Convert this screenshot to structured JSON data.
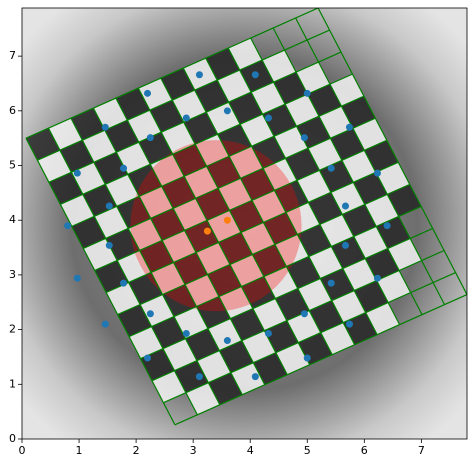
{
  "chart_data": {
    "type": "scatter",
    "xlim": [
      0,
      7.8
    ],
    "ylim": [
      0,
      7.88
    ],
    "xticks": [
      0,
      1,
      2,
      3,
      4,
      5,
      6,
      7
    ],
    "yticks": [
      0,
      1,
      2,
      3,
      4,
      5,
      6,
      7
    ],
    "series": [
      {
        "color": "#1f77b4",
        "x": [
          6.4,
          6.23,
          5.74,
          5.0,
          4.09,
          3.11,
          2.2,
          1.46,
          0.97,
          0.8,
          0.97,
          1.46,
          2.2,
          3.11,
          4.09,
          5.0,
          5.74,
          6.23,
          5.67,
          5.42,
          4.95,
          4.32,
          3.6,
          2.88,
          2.25,
          1.78,
          1.53,
          1.53,
          1.78,
          2.25,
          2.88,
          3.6,
          4.32,
          4.95,
          5.42,
          5.67
        ],
        "y": [
          3.9,
          4.86,
          5.7,
          6.32,
          6.66,
          6.66,
          6.32,
          5.7,
          4.86,
          3.9,
          2.94,
          2.1,
          1.48,
          1.14,
          1.14,
          1.48,
          2.1,
          2.94,
          4.26,
          4.95,
          5.51,
          5.87,
          6.0,
          5.87,
          5.51,
          4.95,
          4.26,
          3.54,
          2.85,
          2.29,
          1.93,
          1.8,
          1.93,
          2.29,
          2.85,
          3.54
        ]
      },
      {
        "color": "#ff7f0e",
        "x": [
          3.25,
          3.6
        ],
        "y": [
          3.8,
          4.0
        ]
      }
    ],
    "circle": {
      "center": [
        3.4,
        3.9
      ],
      "radius": 1.5,
      "color": "#ff0000"
    },
    "grid_overlay": {
      "corners": [
        [
          0.07,
          5.5
        ],
        [
          5.19,
          7.88
        ],
        [
          7.8,
          2.64
        ],
        [
          2.68,
          0.26
        ]
      ],
      "cells": 13,
      "color": "#008000"
    }
  }
}
